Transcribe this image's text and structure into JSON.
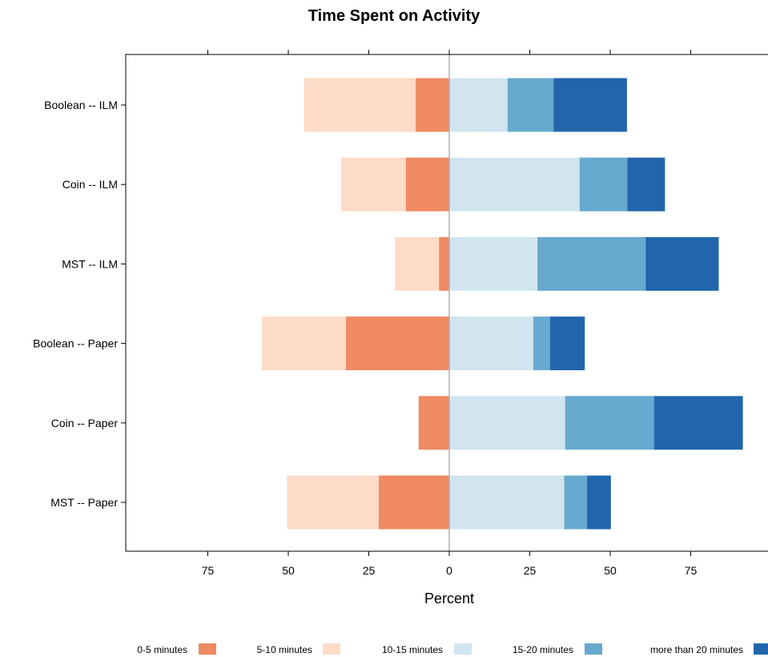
{
  "chart_data": {
    "type": "bar",
    "orientation": "horizontal",
    "diverging": true,
    "title": "Time Spent on Activity",
    "xlabel": "Percent",
    "ylabel": "",
    "xlim": [
      -100,
      100
    ],
    "xticks": [
      -75,
      -50,
      -25,
      0,
      25,
      50,
      75
    ],
    "xtick_labels": [
      "75",
      "50",
      "25",
      "0",
      "25",
      "50",
      "75"
    ],
    "categories": [
      "Boolean -- ILM",
      "Coin -- ILM",
      "MST -- ILM",
      "Boolean -- Paper",
      "Coin -- Paper",
      "MST -- Paper"
    ],
    "series": [
      {
        "name": "0-5 minutes",
        "side": "negative",
        "color": "#ef8a62",
        "values": [
          10.5,
          13.5,
          3.2,
          32.1,
          9.5,
          21.9
        ]
      },
      {
        "name": "5-10 minutes",
        "side": "negative",
        "color": "#fddbc7",
        "values": [
          34.6,
          20.1,
          13.6,
          26.1,
          0,
          28.5
        ]
      },
      {
        "name": "10-15 minutes",
        "side": "positive",
        "color": "#d1e5f0",
        "values": [
          18.1,
          40.5,
          27.4,
          26.1,
          36.0,
          35.7
        ]
      },
      {
        "name": "15-20 minutes",
        "side": "positive",
        "color": "#67a9cf",
        "values": [
          14.3,
          14.8,
          33.6,
          5.2,
          27.6,
          7.1
        ]
      },
      {
        "name": "more than 20 minutes",
        "side": "positive",
        "color": "#2166ac",
        "values": [
          22.8,
          11.7,
          22.7,
          10.8,
          27.6,
          7.4
        ]
      }
    ],
    "legend": {
      "position": "bottom"
    },
    "grid": false,
    "zero_line_color": "#b0b0b0"
  }
}
